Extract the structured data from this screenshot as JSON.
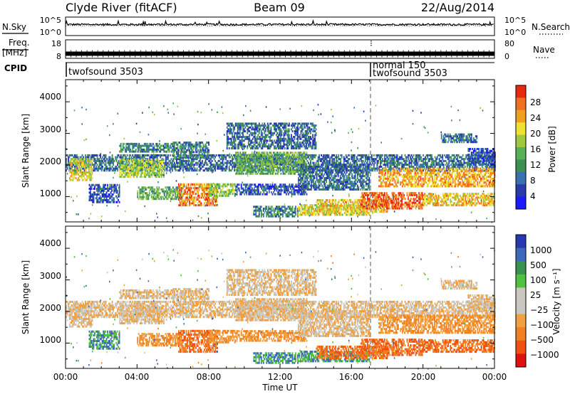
{
  "header": {
    "station": "Clyde River (fitACF)",
    "beam": "Beam 09",
    "date": "22/Aug/2014"
  },
  "nsky_panel": {
    "left_label": "N.Sky",
    "right_label": "N.Search",
    "left_ticks": [
      "10^5",
      "10^0"
    ],
    "right_ticks": [
      "10^5",
      "10^0"
    ],
    "legend_line": "dotted"
  },
  "freq_panel": {
    "left_label_1": "Freq.",
    "left_label_2": "[MHz]",
    "right_label": "Nave",
    "left_ticks": [
      "18",
      "8"
    ],
    "right_ticks": [
      "80",
      "0"
    ],
    "legend_line": "dotted"
  },
  "cpid_panel": {
    "label": "CPID",
    "segments": [
      {
        "start_hour": 0,
        "texts": [
          "twofsound 3503"
        ]
      },
      {
        "start_hour": 17.1,
        "texts": [
          "normal 150",
          "twofsound 3503"
        ]
      }
    ]
  },
  "power_panel": {
    "ylabel": "Slant Range [km]",
    "yticks": [
      "4000",
      "3000",
      "2000",
      "1000"
    ],
    "colorbar": {
      "label": "Power [dB]",
      "ticks": [
        "28",
        "24",
        "20",
        "16",
        "12",
        "8",
        "4"
      ],
      "colors": [
        "#1a1aff",
        "#2a3aa8",
        "#3a6fb0",
        "#3c9050",
        "#58b058",
        "#a0c840",
        "#f0e030",
        "#f0a020",
        "#f07020",
        "#e82810"
      ]
    }
  },
  "velocity_panel": {
    "ylabel": "Slant Range [km]",
    "yticks": [
      "4000",
      "3000",
      "2000",
      "1000"
    ],
    "colorbar": {
      "label": "Velocity [m s⁻¹]",
      "ticks": [
        "1000",
        "500",
        "100",
        "25",
        "−25",
        "−100",
        "−500",
        "−1000"
      ],
      "colors": [
        "#2838b0",
        "#3c6ab8",
        "#3a9050",
        "#50c040",
        "#c8c8c0",
        "#c8c8c0",
        "#f0a040",
        "#f08020",
        "#f05010",
        "#e01010"
      ]
    }
  },
  "xaxis": {
    "label": "Time UT",
    "ticks": [
      "00:00",
      "04:00",
      "08:00",
      "12:00",
      "16:00",
      "20:00",
      "00:00"
    ]
  },
  "chart_data": {
    "type": "heatmap",
    "title": "Clyde River (fitACF)  Beam 09  22/Aug/2014",
    "xlabel": "Time UT",
    "ylabel": "Slant Range [km]",
    "x_range_hours": [
      0,
      24
    ],
    "y_range_km": [
      200,
      4700
    ],
    "power_scale_db": [
      0,
      32
    ],
    "velocity_scale_ms": [
      -1000,
      1000
    ],
    "nsky_range": [
      1,
      100000
    ],
    "freq_range_mhz": [
      8,
      18
    ],
    "nave_range": [
      0,
      80
    ],
    "noise_level": 3.0,
    "freq_level_mhz": 10.5,
    "power_bands": [
      {
        "t0": 0.0,
        "t1": 24.0,
        "r0": 1800,
        "r1": 2300,
        "p": 8,
        "v": -25
      },
      {
        "t0": 0.2,
        "t1": 1.5,
        "r0": 1500,
        "r1": 2200,
        "p": 20,
        "v": -25
      },
      {
        "t0": 1.3,
        "t1": 3.0,
        "r0": 800,
        "r1": 1400,
        "p": 6,
        "v": 100
      },
      {
        "t0": 3.0,
        "t1": 5.5,
        "r0": 1600,
        "r1": 2200,
        "p": 18,
        "v": -25
      },
      {
        "t0": 3.0,
        "t1": 6.0,
        "r0": 2400,
        "r1": 2700,
        "p": 10,
        "v": -25
      },
      {
        "t0": 4.0,
        "t1": 6.5,
        "r0": 900,
        "r1": 1300,
        "p": 14,
        "v": -100
      },
      {
        "t0": 6.0,
        "t1": 8.0,
        "r0": 2200,
        "r1": 2700,
        "p": 10,
        "v": -25
      },
      {
        "t0": 6.3,
        "t1": 8.5,
        "r0": 700,
        "r1": 1400,
        "p": 26,
        "v": -500
      },
      {
        "t0": 8.0,
        "t1": 9.5,
        "r0": 1000,
        "r1": 1400,
        "p": 16,
        "v": -100
      },
      {
        "t0": 9.0,
        "t1": 14.0,
        "r0": 2500,
        "r1": 3300,
        "p": 8,
        "v": -25
      },
      {
        "t0": 9.5,
        "t1": 13.5,
        "r0": 1700,
        "r1": 2400,
        "p": 14,
        "v": -25
      },
      {
        "t0": 9.5,
        "t1": 13.5,
        "r0": 1050,
        "r1": 1400,
        "p": 6,
        "v": -100
      },
      {
        "t0": 10.5,
        "t1": 13.0,
        "r0": 350,
        "r1": 700,
        "p": 10,
        "v": 100
      },
      {
        "t0": 13.0,
        "t1": 17.0,
        "r0": 1200,
        "r1": 2000,
        "p": 8,
        "v": -25
      },
      {
        "t0": 13.0,
        "t1": 17.0,
        "r0": 400,
        "r1": 750,
        "p": 20,
        "v": 100
      },
      {
        "t0": 14.0,
        "t1": 18.0,
        "r0": 500,
        "r1": 900,
        "p": 22,
        "v": -500
      },
      {
        "t0": 16.5,
        "t1": 20.0,
        "r0": 600,
        "r1": 1100,
        "p": 28,
        "v": -500
      },
      {
        "t0": 17.5,
        "t1": 24.0,
        "r0": 1300,
        "r1": 1900,
        "p": 24,
        "v": -100
      },
      {
        "t0": 20.0,
        "t1": 24.0,
        "r0": 700,
        "r1": 1100,
        "p": 22,
        "v": -500
      },
      {
        "t0": 21.0,
        "t1": 23.0,
        "r0": 2700,
        "r1": 3000,
        "p": 8,
        "v": -25
      },
      {
        "t0": 22.5,
        "t1": 24.0,
        "r0": 2000,
        "r1": 2500,
        "p": 6,
        "v": -25
      }
    ]
  }
}
